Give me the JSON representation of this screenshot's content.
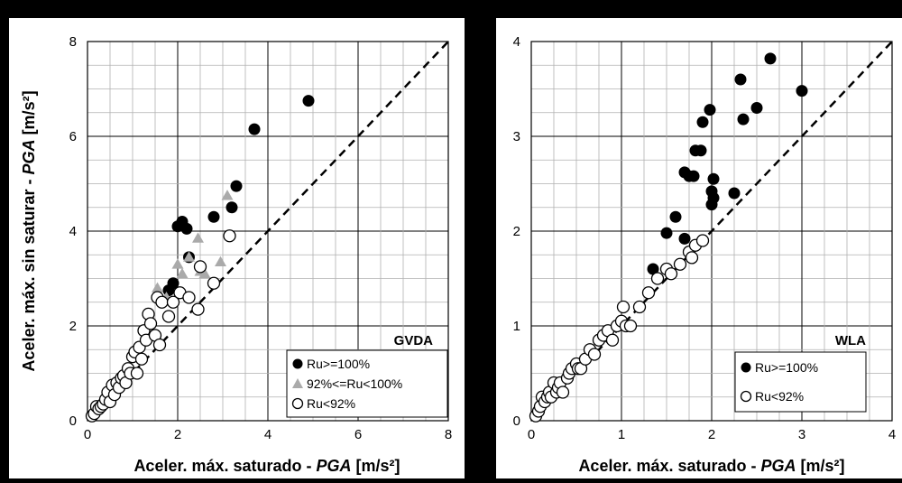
{
  "chart_data": [
    {
      "type": "scatter",
      "tag": "GVDA",
      "xlabel_main": "Aceler. máx. saturado - ",
      "xlabel_italic": "PGA",
      "xlabel_unit": " [m/s²]",
      "ylabel_main": "Aceler. máx. sin saturar - ",
      "ylabel_italic": "PGA",
      "ylabel_unit": " [m/s²]",
      "xlim": [
        0,
        8
      ],
      "ylim": [
        0,
        8
      ],
      "xticks": [
        "0",
        "2",
        "4",
        "6",
        "8"
      ],
      "yticks": [
        "0",
        "2",
        "4",
        "6",
        "8"
      ],
      "grid": true,
      "reference_line": "1:1 dashed",
      "legend_position": "bottom-right",
      "series": [
        {
          "name": "Ru>=100%",
          "marker": "filled-circle",
          "color": "#000000",
          "x": [
            1.65,
            1.8,
            1.9,
            2.0,
            2.1,
            2.2,
            2.25,
            2.8,
            3.2,
            3.3,
            3.7,
            4.9
          ],
          "y": [
            2.5,
            2.75,
            2.9,
            4.1,
            4.2,
            4.05,
            3.45,
            4.3,
            4.5,
            4.95,
            6.15,
            6.75
          ]
        },
        {
          "name": "92%<=Ru<100%",
          "marker": "filled-triangle",
          "color": "#aaaaaa",
          "x": [
            1.55,
            1.75,
            2.0,
            2.1,
            2.25,
            2.45,
            2.5,
            2.6,
            2.95,
            3.1
          ],
          "y": [
            2.8,
            2.6,
            3.3,
            3.1,
            3.45,
            3.85,
            3.15,
            3.1,
            3.35,
            4.75
          ]
        },
        {
          "name": "Ru<92%",
          "marker": "open-circle",
          "color": "#000000",
          "x": [
            0.1,
            0.15,
            0.2,
            0.25,
            0.3,
            0.35,
            0.4,
            0.45,
            0.5,
            0.55,
            0.6,
            0.65,
            0.7,
            0.75,
            0.8,
            0.85,
            0.9,
            0.95,
            1.0,
            1.05,
            1.1,
            1.15,
            1.2,
            1.25,
            1.3,
            1.35,
            1.4,
            1.5,
            1.55,
            1.6,
            1.65,
            1.8,
            1.9,
            2.05,
            2.25,
            2.45,
            2.5,
            2.8,
            3.15
          ],
          "y": [
            0.1,
            0.15,
            0.3,
            0.25,
            0.3,
            0.35,
            0.45,
            0.6,
            0.4,
            0.75,
            0.55,
            0.8,
            0.7,
            0.9,
            0.95,
            0.8,
            1.1,
            1.0,
            1.35,
            1.45,
            1.0,
            1.55,
            1.3,
            1.9,
            1.7,
            2.25,
            2.05,
            1.8,
            2.6,
            1.6,
            2.5,
            2.2,
            2.5,
            2.7,
            2.6,
            2.35,
            3.25,
            2.9,
            3.9
          ]
        }
      ]
    },
    {
      "type": "scatter",
      "tag": "WLA",
      "xlabel_main": "Aceler. máx. saturado - ",
      "xlabel_italic": "PGA",
      "xlabel_unit": " [m/s²]",
      "xlim": [
        0,
        4
      ],
      "ylim": [
        0,
        4
      ],
      "xticks": [
        "0",
        "1",
        "2",
        "3",
        "4"
      ],
      "yticks": [
        "0",
        "1",
        "2",
        "3",
        "4"
      ],
      "grid": true,
      "reference_line": "1:1 dashed",
      "legend_position": "bottom-right",
      "series": [
        {
          "name": "Ru>=100%",
          "marker": "filled-circle",
          "color": "#000000",
          "x": [
            1.35,
            1.5,
            1.6,
            1.7,
            1.7,
            1.75,
            1.8,
            1.82,
            1.88,
            1.9,
            1.98,
            2.0,
            2.0,
            2.02,
            2.02,
            2.25,
            2.32,
            2.35,
            2.5,
            2.65,
            3.0
          ],
          "y": [
            1.6,
            1.98,
            2.15,
            1.92,
            2.62,
            2.58,
            2.58,
            2.85,
            2.85,
            3.15,
            3.28,
            2.42,
            2.28,
            2.35,
            2.55,
            2.4,
            3.6,
            3.18,
            3.3,
            3.82,
            3.48
          ]
        },
        {
          "name": "Ru<92%",
          "marker": "open-circle",
          "color": "#000000",
          "x": [
            0.05,
            0.08,
            0.1,
            0.12,
            0.15,
            0.18,
            0.2,
            0.22,
            0.25,
            0.28,
            0.3,
            0.32,
            0.35,
            0.4,
            0.42,
            0.45,
            0.5,
            0.52,
            0.55,
            0.6,
            0.65,
            0.7,
            0.75,
            0.8,
            0.85,
            0.9,
            0.95,
            1.0,
            1.02,
            1.05,
            1.1,
            1.2,
            1.3,
            1.4,
            1.5,
            1.55,
            1.65,
            1.75,
            1.78,
            1.82,
            1.9
          ],
          "y": [
            0.05,
            0.1,
            0.15,
            0.25,
            0.2,
            0.25,
            0.3,
            0.25,
            0.4,
            0.3,
            0.35,
            0.4,
            0.3,
            0.45,
            0.5,
            0.55,
            0.6,
            0.55,
            0.55,
            0.65,
            0.75,
            0.7,
            0.85,
            0.9,
            0.95,
            0.85,
            1.0,
            1.05,
            1.2,
            1.0,
            1.0,
            1.2,
            1.35,
            1.5,
            1.6,
            1.55,
            1.65,
            1.78,
            1.72,
            1.85,
            1.9
          ]
        }
      ]
    }
  ]
}
